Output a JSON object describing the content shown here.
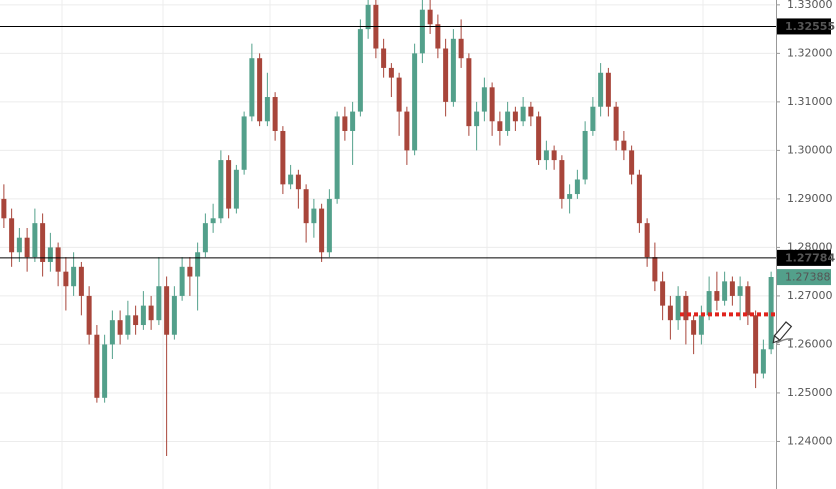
{
  "chart_data": {
    "type": "candlestick",
    "up_color": "#53a08b",
    "down_color": "#a8453a",
    "ylim": [
      1.2302,
      1.331
    ],
    "yticks": [
      {
        "value": 1.24,
        "label": "1.24000"
      },
      {
        "value": 1.25,
        "label": "1.25000"
      },
      {
        "value": 1.26,
        "label": "1.26000"
      },
      {
        "value": 1.27,
        "label": "1.27000"
      },
      {
        "value": 1.28,
        "label": "1.28000"
      },
      {
        "value": 1.29,
        "label": "1.29000"
      },
      {
        "value": 1.3,
        "label": "1.30000"
      },
      {
        "value": 1.31,
        "label": "1.31000"
      },
      {
        "value": 1.32,
        "label": "1.32000"
      },
      {
        "value": 1.33,
        "label": "1.33000"
      }
    ],
    "grid": true,
    "horizontal_lines": [
      1.32555,
      1.27784
    ],
    "current_price": 1.27388,
    "dotted_level": {
      "value": 1.2662,
      "color": "#e0231c"
    },
    "ohlc": [
      [
        1.29,
        1.293,
        1.284,
        1.286
      ],
      [
        1.286,
        1.288,
        1.276,
        1.279
      ],
      [
        1.279,
        1.284,
        1.277,
        1.282
      ],
      [
        1.282,
        1.284,
        1.275,
        1.278
      ],
      [
        1.278,
        1.288,
        1.277,
        1.285
      ],
      [
        1.285,
        1.287,
        1.274,
        1.277
      ],
      [
        1.277,
        1.283,
        1.275,
        1.28
      ],
      [
        1.28,
        1.281,
        1.272,
        1.275
      ],
      [
        1.275,
        1.278,
        1.267,
        1.272
      ],
      [
        1.272,
        1.279,
        1.27,
        1.276
      ],
      [
        1.276,
        1.277,
        1.266,
        1.27
      ],
      [
        1.27,
        1.272,
        1.26,
        1.262
      ],
      [
        1.262,
        1.264,
        1.248,
        1.249
      ],
      [
        1.249,
        1.262,
        1.248,
        1.26
      ],
      [
        1.26,
        1.267,
        1.257,
        1.265
      ],
      [
        1.265,
        1.267,
        1.26,
        1.262
      ],
      [
        1.262,
        1.269,
        1.261,
        1.266
      ],
      [
        1.266,
        1.268,
        1.262,
        1.264
      ],
      [
        1.264,
        1.271,
        1.263,
        1.268
      ],
      [
        1.268,
        1.27,
        1.263,
        1.265
      ],
      [
        1.265,
        1.278,
        1.264,
        1.272
      ],
      [
        1.272,
        1.274,
        1.237,
        1.262
      ],
      [
        1.262,
        1.272,
        1.261,
        1.27
      ],
      [
        1.27,
        1.278,
        1.269,
        1.276
      ],
      [
        1.276,
        1.278,
        1.27,
        1.274
      ],
      [
        1.274,
        1.281,
        1.267,
        1.279
      ],
      [
        1.279,
        1.287,
        1.278,
        1.285
      ],
      [
        1.285,
        1.289,
        1.283,
        1.286
      ],
      [
        1.286,
        1.3,
        1.285,
        1.298
      ],
      [
        1.298,
        1.299,
        1.286,
        1.288
      ],
      [
        1.288,
        1.297,
        1.287,
        1.296
      ],
      [
        1.296,
        1.308,
        1.295,
        1.307
      ],
      [
        1.307,
        1.322,
        1.306,
        1.319
      ],
      [
        1.319,
        1.32,
        1.305,
        1.306
      ],
      [
        1.306,
        1.316,
        1.305,
        1.311
      ],
      [
        1.311,
        1.312,
        1.302,
        1.304
      ],
      [
        1.304,
        1.305,
        1.291,
        1.293
      ],
      [
        1.293,
        1.297,
        1.292,
        1.295
      ],
      [
        1.295,
        1.296,
        1.288,
        1.292
      ],
      [
        1.292,
        1.293,
        1.281,
        1.285
      ],
      [
        1.285,
        1.29,
        1.282,
        1.288
      ],
      [
        1.288,
        1.289,
        1.277,
        1.279
      ],
      [
        1.279,
        1.292,
        1.278,
        1.29
      ],
      [
        1.29,
        1.308,
        1.289,
        1.307
      ],
      [
        1.307,
        1.309,
        1.302,
        1.304
      ],
      [
        1.304,
        1.31,
        1.297,
        1.308
      ],
      [
        1.308,
        1.327,
        1.307,
        1.325
      ],
      [
        1.325,
        1.331,
        1.323,
        1.33
      ],
      [
        1.33,
        1.331,
        1.319,
        1.321
      ],
      [
        1.321,
        1.323,
        1.315,
        1.317
      ],
      [
        1.317,
        1.318,
        1.311,
        1.315
      ],
      [
        1.315,
        1.316,
        1.303,
        1.308
      ],
      [
        1.308,
        1.309,
        1.297,
        1.3
      ],
      [
        1.3,
        1.322,
        1.299,
        1.32
      ],
      [
        1.32,
        1.331,
        1.318,
        1.329
      ],
      [
        1.329,
        1.331,
        1.324,
        1.326
      ],
      [
        1.326,
        1.328,
        1.319,
        1.321
      ],
      [
        1.321,
        1.323,
        1.307,
        1.31
      ],
      [
        1.31,
        1.325,
        1.309,
        1.323
      ],
      [
        1.323,
        1.327,
        1.317,
        1.319
      ],
      [
        1.319,
        1.32,
        1.303,
        1.305
      ],
      [
        1.305,
        1.31,
        1.3,
        1.308
      ],
      [
        1.308,
        1.315,
        1.306,
        1.313
      ],
      [
        1.313,
        1.314,
        1.303,
        1.306
      ],
      [
        1.306,
        1.308,
        1.301,
        1.304
      ],
      [
        1.304,
        1.31,
        1.303,
        1.308
      ],
      [
        1.308,
        1.309,
        1.304,
        1.306
      ],
      [
        1.306,
        1.311,
        1.305,
        1.309
      ],
      [
        1.309,
        1.31,
        1.305,
        1.307
      ],
      [
        1.307,
        1.308,
        1.297,
        1.298
      ],
      [
        1.298,
        1.302,
        1.296,
        1.3
      ],
      [
        1.3,
        1.301,
        1.296,
        1.298
      ],
      [
        1.298,
        1.299,
        1.288,
        1.29
      ],
      [
        1.29,
        1.293,
        1.287,
        1.291
      ],
      [
        1.291,
        1.296,
        1.29,
        1.294
      ],
      [
        1.294,
        1.306,
        1.293,
        1.304
      ],
      [
        1.304,
        1.311,
        1.303,
        1.309
      ],
      [
        1.309,
        1.318,
        1.307,
        1.316
      ],
      [
        1.316,
        1.317,
        1.307,
        1.309
      ],
      [
        1.309,
        1.31,
        1.3,
        1.302
      ],
      [
        1.302,
        1.304,
        1.298,
        1.3
      ],
      [
        1.3,
        1.301,
        1.293,
        1.295
      ],
      [
        1.295,
        1.296,
        1.283,
        1.285
      ],
      [
        1.285,
        1.286,
        1.276,
        1.278
      ],
      [
        1.278,
        1.281,
        1.271,
        1.273
      ],
      [
        1.273,
        1.275,
        1.265,
        1.268
      ],
      [
        1.268,
        1.27,
        1.261,
        1.265
      ],
      [
        1.265,
        1.272,
        1.263,
        1.27
      ],
      [
        1.27,
        1.271,
        1.26,
        1.265
      ],
      [
        1.265,
        1.266,
        1.258,
        1.262
      ],
      [
        1.262,
        1.268,
        1.26,
        1.266
      ],
      [
        1.266,
        1.274,
        1.265,
        1.271
      ],
      [
        1.271,
        1.275,
        1.267,
        1.269
      ],
      [
        1.269,
        1.275,
        1.268,
        1.273
      ],
      [
        1.273,
        1.274,
        1.268,
        1.27
      ],
      [
        1.27,
        1.274,
        1.265,
        1.272
      ],
      [
        1.272,
        1.273,
        1.264,
        1.266
      ],
      [
        1.266,
        1.267,
        1.251,
        1.254
      ],
      [
        1.254,
        1.261,
        1.253,
        1.259
      ],
      [
        1.259,
        1.275,
        1.258,
        1.2739
      ]
    ]
  }
}
